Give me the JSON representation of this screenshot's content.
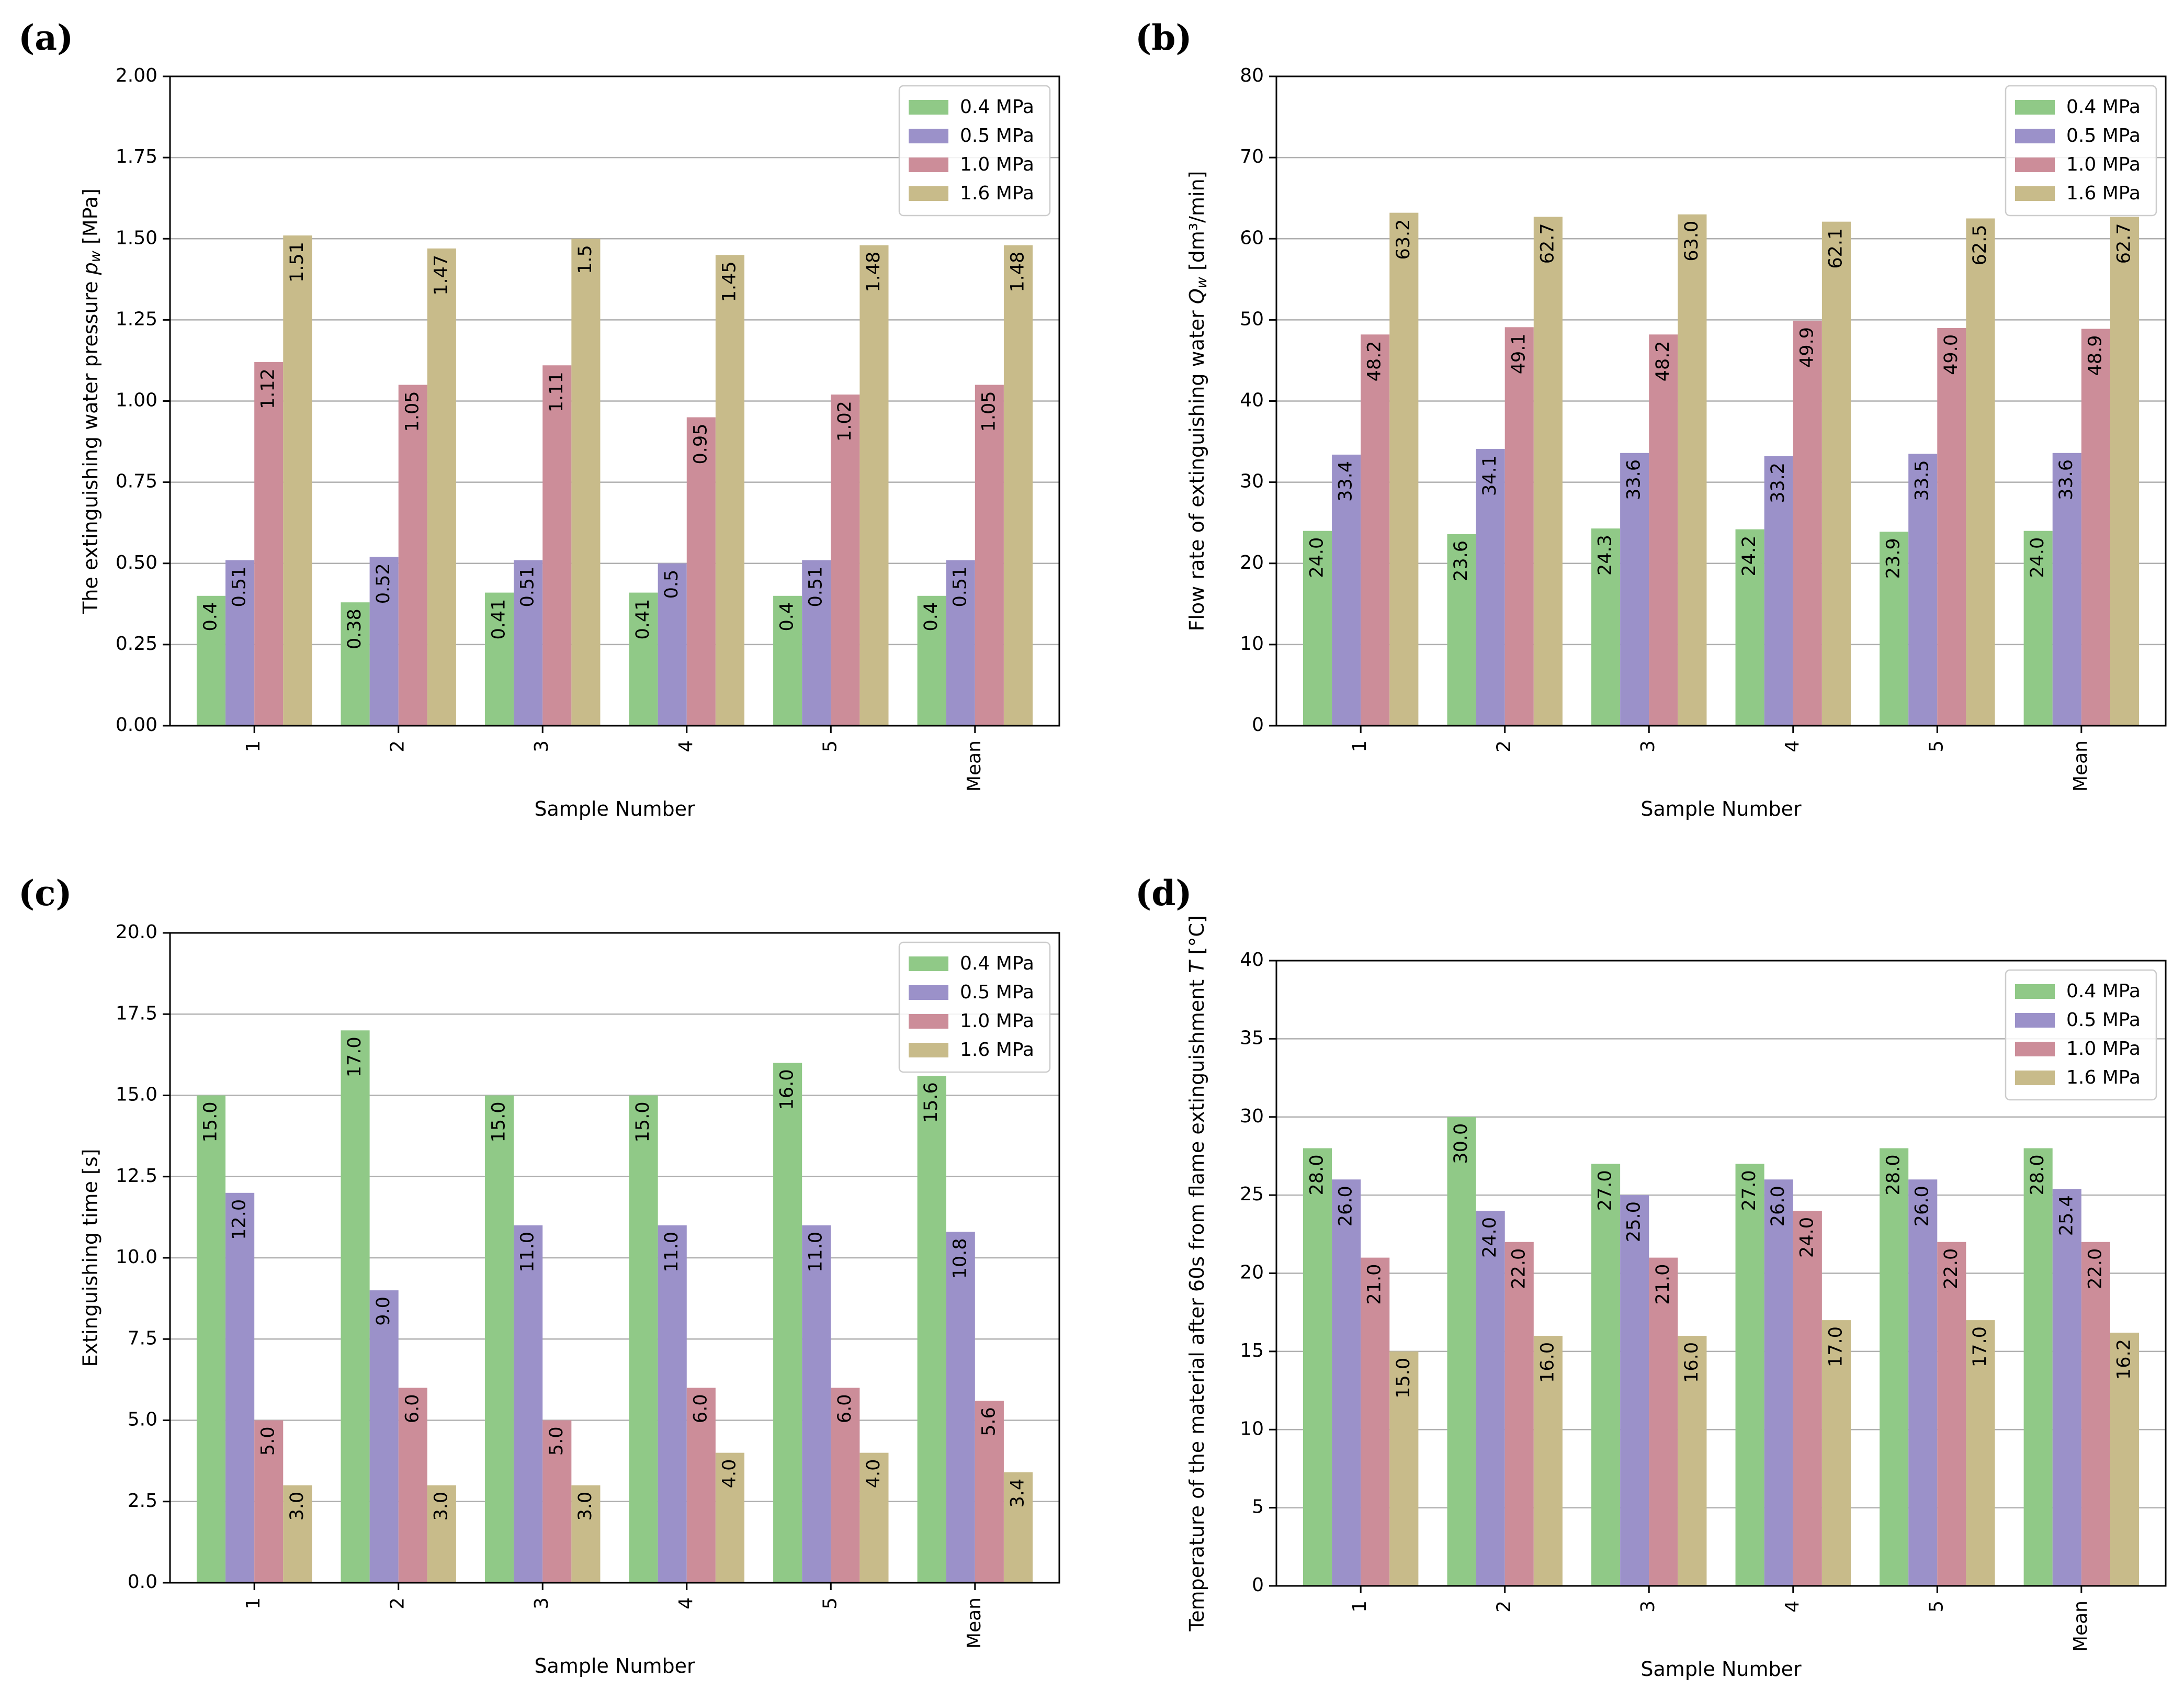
{
  "chart_data": [
    {
      "type": "bar",
      "panel": "(a)",
      "categories": [
        "1",
        "2",
        "3",
        "4",
        "5",
        "Mean"
      ],
      "series": [
        {
          "name": "0.4 MPa",
          "values": [
            0.4,
            0.38,
            0.41,
            0.41,
            0.4,
            0.4
          ],
          "labels": [
            "0.4",
            "0.38",
            "0.41",
            "0.41",
            "0.4",
            "0.4"
          ]
        },
        {
          "name": "0.5 MPa",
          "values": [
            0.51,
            0.52,
            0.51,
            0.5,
            0.51,
            0.51
          ],
          "labels": [
            "0.51",
            "0.52",
            "0.51",
            "0.5",
            "0.51",
            "0.51"
          ]
        },
        {
          "name": "1.0 MPa",
          "values": [
            1.12,
            1.05,
            1.11,
            0.95,
            1.02,
            1.05
          ],
          "labels": [
            "1.12",
            "1.05",
            "1.11",
            "0.95",
            "1.02",
            "1.05"
          ]
        },
        {
          "name": "1.6 MPa",
          "values": [
            1.51,
            1.47,
            1.5,
            1.45,
            1.48,
            1.48
          ],
          "labels": [
            "1.51",
            "1.47",
            "1.5",
            "1.45",
            "1.48",
            "1.48"
          ]
        }
      ],
      "xlabel": "Sample Number",
      "ylabel": "The extinguishing water pressure p_w [MPa]",
      "ylim": [
        0,
        2.0
      ],
      "yticks": [
        "0.00",
        "0.25",
        "0.50",
        "0.75",
        "1.00",
        "1.25",
        "1.50",
        "1.75",
        "2.00"
      ],
      "grid": "horizontal",
      "legend_position": "top-right"
    },
    {
      "type": "bar",
      "panel": "(b)",
      "categories": [
        "1",
        "2",
        "3",
        "4",
        "5",
        "Mean"
      ],
      "series": [
        {
          "name": "0.4 MPa",
          "values": [
            24.0,
            23.6,
            24.3,
            24.2,
            23.9,
            24.0
          ],
          "labels": [
            "24.0",
            "23.6",
            "24.3",
            "24.2",
            "23.9",
            "24.0"
          ]
        },
        {
          "name": "0.5 MPa",
          "values": [
            33.4,
            34.1,
            33.6,
            33.2,
            33.5,
            33.6
          ],
          "labels": [
            "33.4",
            "34.1",
            "33.6",
            "33.2",
            "33.5",
            "33.6"
          ]
        },
        {
          "name": "1.0 MPa",
          "values": [
            48.2,
            49.1,
            48.2,
            49.9,
            49.0,
            48.9
          ],
          "labels": [
            "48.2",
            "49.1",
            "48.2",
            "49.9",
            "49.0",
            "48.9"
          ]
        },
        {
          "name": "1.6 MPa",
          "values": [
            63.2,
            62.7,
            63.0,
            62.1,
            62.5,
            62.7
          ],
          "labels": [
            "63.2",
            "62.7",
            "63.0",
            "62.1",
            "62.5",
            "62.7"
          ]
        }
      ],
      "xlabel": "Sample Number",
      "ylabel": "Flow rate of extinguishing water Q_w [dm³/min]",
      "ylim": [
        0,
        80
      ],
      "yticks": [
        "0",
        "10",
        "20",
        "30",
        "40",
        "50",
        "60",
        "70",
        "80"
      ],
      "grid": "horizontal",
      "legend_position": "top-right"
    },
    {
      "type": "bar",
      "panel": "(c)",
      "categories": [
        "1",
        "2",
        "3",
        "4",
        "5",
        "Mean"
      ],
      "series": [
        {
          "name": "0.4 MPa",
          "values": [
            15.0,
            17.0,
            15.0,
            15.0,
            16.0,
            15.6
          ],
          "labels": [
            "15.0",
            "17.0",
            "15.0",
            "15.0",
            "16.0",
            "15.6"
          ]
        },
        {
          "name": "0.5 MPa",
          "values": [
            12.0,
            9.0,
            11.0,
            11.0,
            11.0,
            10.8
          ],
          "labels": [
            "12.0",
            "9.0",
            "11.0",
            "11.0",
            "11.0",
            "10.8"
          ]
        },
        {
          "name": "1.0 MPa",
          "values": [
            5.0,
            6.0,
            5.0,
            6.0,
            6.0,
            5.6
          ],
          "labels": [
            "5.0",
            "6.0",
            "5.0",
            "6.0",
            "6.0",
            "5.6"
          ]
        },
        {
          "name": "1.6 MPa",
          "values": [
            3.0,
            3.0,
            3.0,
            4.0,
            4.0,
            3.4
          ],
          "labels": [
            "3.0",
            "3.0",
            "3.0",
            "4.0",
            "4.0",
            "3.4"
          ]
        }
      ],
      "xlabel": "Sample Number",
      "ylabel": "Extinguishing time [s]",
      "ylim": [
        0,
        20.0
      ],
      "yticks": [
        "0.0",
        "2.5",
        "5.0",
        "7.5",
        "10.0",
        "12.5",
        "15.0",
        "17.5",
        "20.0"
      ],
      "grid": "horizontal",
      "legend_position": "top-right"
    },
    {
      "type": "bar",
      "panel": "(d)",
      "categories": [
        "1",
        "2",
        "3",
        "4",
        "5",
        "Mean"
      ],
      "series": [
        {
          "name": "0.4 MPa",
          "values": [
            28.0,
            30.0,
            27.0,
            27.0,
            28.0,
            28.0
          ],
          "labels": [
            "28.0",
            "30.0",
            "27.0",
            "27.0",
            "28.0",
            "28.0"
          ]
        },
        {
          "name": "0.5 MPa",
          "values": [
            26.0,
            24.0,
            25.0,
            26.0,
            26.0,
            25.4
          ],
          "labels": [
            "26.0",
            "24.0",
            "25.0",
            "26.0",
            "26.0",
            "25.4"
          ]
        },
        {
          "name": "1.0 MPa",
          "values": [
            21.0,
            22.0,
            21.0,
            24.0,
            22.0,
            22.0
          ],
          "labels": [
            "21.0",
            "22.0",
            "21.0",
            "24.0",
            "22.0",
            "22.0"
          ]
        },
        {
          "name": "1.6 MPa",
          "values": [
            15.0,
            16.0,
            16.0,
            17.0,
            17.0,
            16.2
          ],
          "labels": [
            "15.0",
            "16.0",
            "16.0",
            "17.0",
            "17.0",
            "16.2"
          ]
        }
      ],
      "xlabel": "Sample Number",
      "ylabel": "Temperature of the material after 60s from flame extinguishment T [°C]",
      "ylim": [
        0,
        40
      ],
      "yticks": [
        "0",
        "5",
        "10",
        "15",
        "20",
        "25",
        "30",
        "35",
        "40"
      ],
      "grid": "horizontal",
      "legend_position": "top-right"
    }
  ],
  "colors": {
    "0.4 MPa": "#90c987",
    "0.5 MPa": "#9b91c9",
    "1.0 MPa": "#cc8d99",
    "1.6 MPa": "#c8bb8a",
    "grid": "#b0b0b0"
  }
}
